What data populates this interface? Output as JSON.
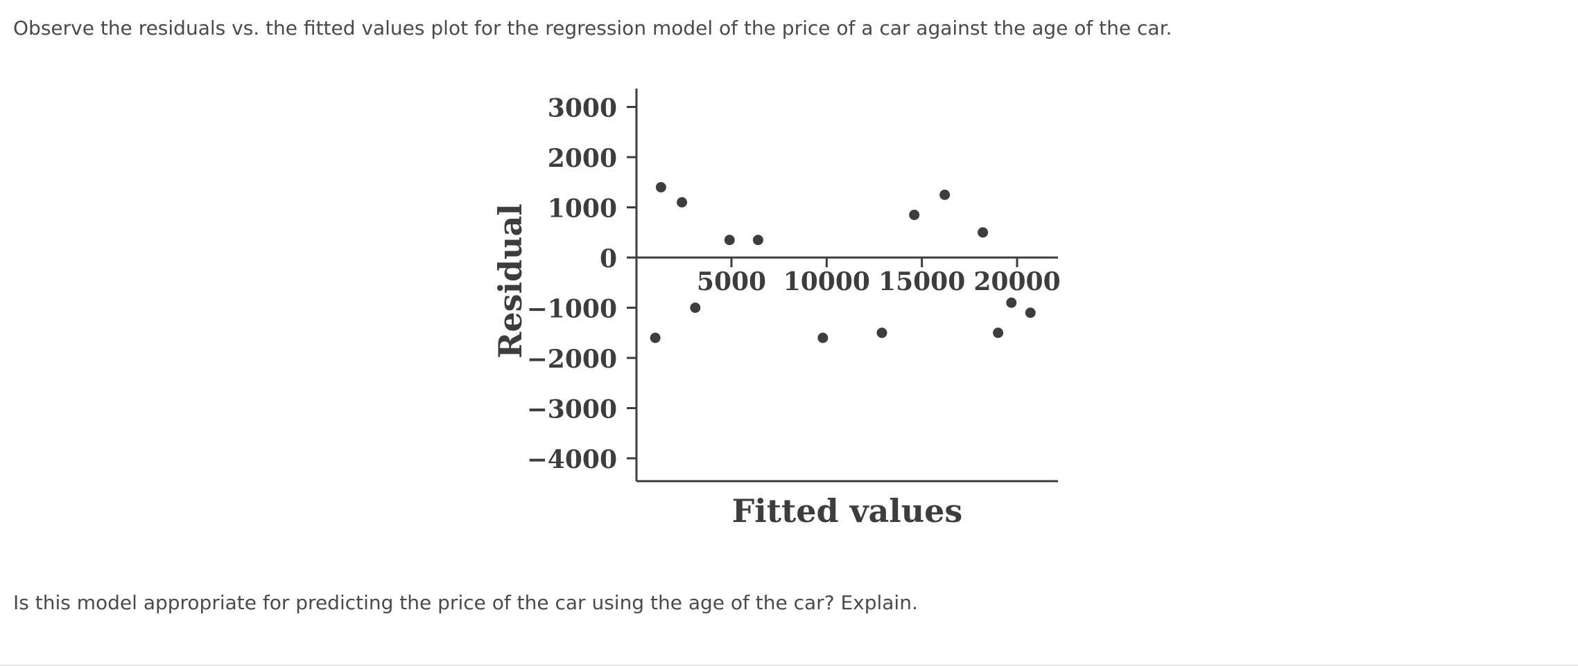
{
  "question": {
    "intro": "Observe the residuals vs. the fitted values plot for the regression model of the price of a car against the age of the car.",
    "prompt": "Is this model appropriate for predicting the price of the car using the age of the car? Explain."
  },
  "colors": {
    "text": "#4a4a4a",
    "axis": "#3d3d3d",
    "points": "#3d3d3d"
  },
  "chart_data": {
    "type": "scatter",
    "title": "",
    "xlabel": "Fitted values",
    "ylabel": "Residual",
    "xlim": [
      -1000,
      21500
    ],
    "ylim": [
      -4400,
      3300
    ],
    "x_ticks": [
      5000,
      10000,
      15000,
      20000
    ],
    "x_tick_labels": [
      "5000",
      "10000",
      "15000",
      "20000"
    ],
    "y_ticks": [
      3000,
      2000,
      1000,
      0,
      -1000,
      -2000,
      -3000,
      -4000
    ],
    "y_tick_labels": [
      "3000",
      "2000",
      "1000",
      "0",
      "−1000",
      "−2000",
      "−3000",
      "−4000"
    ],
    "x_axis_at": 0,
    "grid": false,
    "legend": "none",
    "points": [
      {
        "x": 1000,
        "y": -1600
      },
      {
        "x": 1300,
        "y": 1400
      },
      {
        "x": 2400,
        "y": 1100
      },
      {
        "x": 3100,
        "y": -1000
      },
      {
        "x": 4900,
        "y": 350
      },
      {
        "x": 6400,
        "y": 350
      },
      {
        "x": 9800,
        "y": -1600
      },
      {
        "x": 12900,
        "y": -1500
      },
      {
        "x": 14600,
        "y": 850
      },
      {
        "x": 16200,
        "y": 1250
      },
      {
        "x": 18200,
        "y": 500
      },
      {
        "x": 19000,
        "y": -1500
      },
      {
        "x": 19700,
        "y": -900
      },
      {
        "x": 20700,
        "y": -1100
      }
    ]
  }
}
